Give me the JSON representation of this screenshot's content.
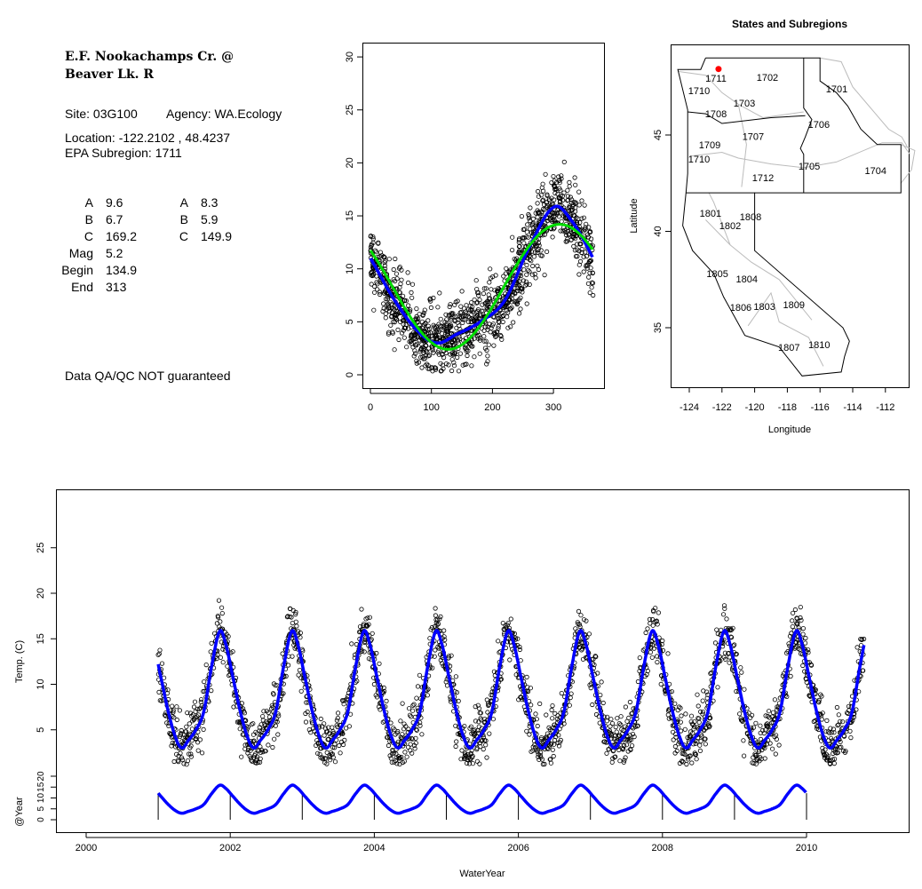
{
  "info": {
    "title_line1": "E.F. Nookachamps Cr. @",
    "title_line2": "Beaver Lk. R",
    "site": "Site: 03G100",
    "agency": "Agency: WA.Ecology",
    "location": "Location: -122.2102 , 48.4237",
    "subregion": "EPA Subregion: 1711",
    "params_left": [
      {
        "label": "A",
        "value": "9.6"
      },
      {
        "label": "B",
        "value": "6.7"
      },
      {
        "label": "C",
        "value": "169.2"
      },
      {
        "label": "Mag",
        "value": "5.2"
      },
      {
        "label": "Begin",
        "value": "134.9"
      },
      {
        "label": "End",
        "value": "313"
      }
    ],
    "params_right": [
      {
        "label": "A",
        "value": "8.3"
      },
      {
        "label": "B",
        "value": "5.9"
      },
      {
        "label": "C",
        "value": "149.9"
      }
    ],
    "disclaimer": "Data QA/QC NOT guaranteed",
    "disclaimer_color": "#b22222"
  },
  "chart_data": [
    {
      "type": "scatter",
      "title": "",
      "xlabel": "",
      "ylabel": "",
      "xlim": [
        0,
        365
      ],
      "ylim": [
        0,
        30
      ],
      "xticks": [
        "0",
        "100",
        "200",
        "300"
      ],
      "yticks": [
        "0",
        "5",
        "10",
        "15",
        "20",
        "25",
        "30"
      ],
      "observed_range": [
        0,
        22
      ],
      "smooth_fit": {
        "color": "#0000ff",
        "day": [
          0,
          40,
          80,
          110,
          140,
          180,
          220,
          260,
          300,
          330,
          365
        ],
        "temp": [
          11,
          7,
          4,
          3,
          3.8,
          5,
          7,
          12,
          15.8,
          14.5,
          11
        ]
      },
      "harmonic_fit": {
        "color": "#00dd00",
        "mean": 8.3,
        "amplitude": 5.9,
        "peak_day": 310
      }
    },
    {
      "type": "map",
      "title": "States and Subregions",
      "xlabel": "Longitude",
      "ylabel": "Latitude",
      "xticks": [
        "-124",
        "-122",
        "-120",
        "-118",
        "-116",
        "-114",
        "-112"
      ],
      "yticks": [
        "35",
        "40",
        "45"
      ],
      "site": {
        "lon": -122.2102,
        "lat": 48.4237,
        "color": "#ff0000"
      },
      "subregions": [
        {
          "name": "1702",
          "lon": -119.22,
          "lat": 47.99
        },
        {
          "name": "1701",
          "lon": -114.98,
          "lat": 47.4
        },
        {
          "name": "1711",
          "lon": -122.37,
          "lat": 47.95
        },
        {
          "name": "1710",
          "lon": -123.4,
          "lat": 47.3
        },
        {
          "name": "1703",
          "lon": -120.63,
          "lat": 46.66
        },
        {
          "name": "1708",
          "lon": -122.37,
          "lat": 46.1
        },
        {
          "name": "1706",
          "lon": -116.07,
          "lat": 45.55
        },
        {
          "name": "1707",
          "lon": -120.09,
          "lat": 44.94
        },
        {
          "name": "1709",
          "lon": -122.75,
          "lat": 44.49
        },
        {
          "name": "1710",
          "lon": -123.4,
          "lat": 43.75
        },
        {
          "name": "1705",
          "lon": -116.66,
          "lat": 43.39
        },
        {
          "name": "1704",
          "lon": -112.6,
          "lat": 43.16
        },
        {
          "name": "1712",
          "lon": -119.49,
          "lat": 42.79
        },
        {
          "name": "1801",
          "lon": -122.7,
          "lat": 40.95
        },
        {
          "name": "1808",
          "lon": -120.25,
          "lat": 40.76
        },
        {
          "name": "1802",
          "lon": -121.5,
          "lat": 40.3
        },
        {
          "name": "1805",
          "lon": -122.28,
          "lat": 37.81
        },
        {
          "name": "1804",
          "lon": -120.48,
          "lat": 37.53
        },
        {
          "name": "1803",
          "lon": -119.4,
          "lat": 36.11
        },
        {
          "name": "1809",
          "lon": -117.6,
          "lat": 36.2
        },
        {
          "name": "1806",
          "lon": -120.85,
          "lat": 36.06
        },
        {
          "name": "1807",
          "lon": -117.9,
          "lat": 33.98
        },
        {
          "name": "1810",
          "lon": -116.05,
          "lat": 34.12
        }
      ]
    },
    {
      "type": "line",
      "title": "",
      "xlabel": "WaterYear",
      "ylabel": "Temp. (C)",
      "ylabel2": "@Year",
      "xlim": [
        1999.6,
        2011.4
      ],
      "xrange_data": [
        2001.0,
        2010.8
      ],
      "xticks": [
        "2000",
        "2002",
        "2004",
        "2006",
        "2008",
        "2010"
      ],
      "yticks": [
        "5",
        "10",
        "15",
        "20",
        "25"
      ],
      "yticks2": [
        "0",
        "5",
        "10",
        "15",
        "20"
      ],
      "year_marks": [
        2001,
        2002,
        2003,
        2004,
        2005,
        2006,
        2007,
        2008,
        2009,
        2010
      ],
      "series_color": "#0000ff",
      "annual_peak_temp": 16,
      "annual_min_temp": 3.2
    }
  ]
}
